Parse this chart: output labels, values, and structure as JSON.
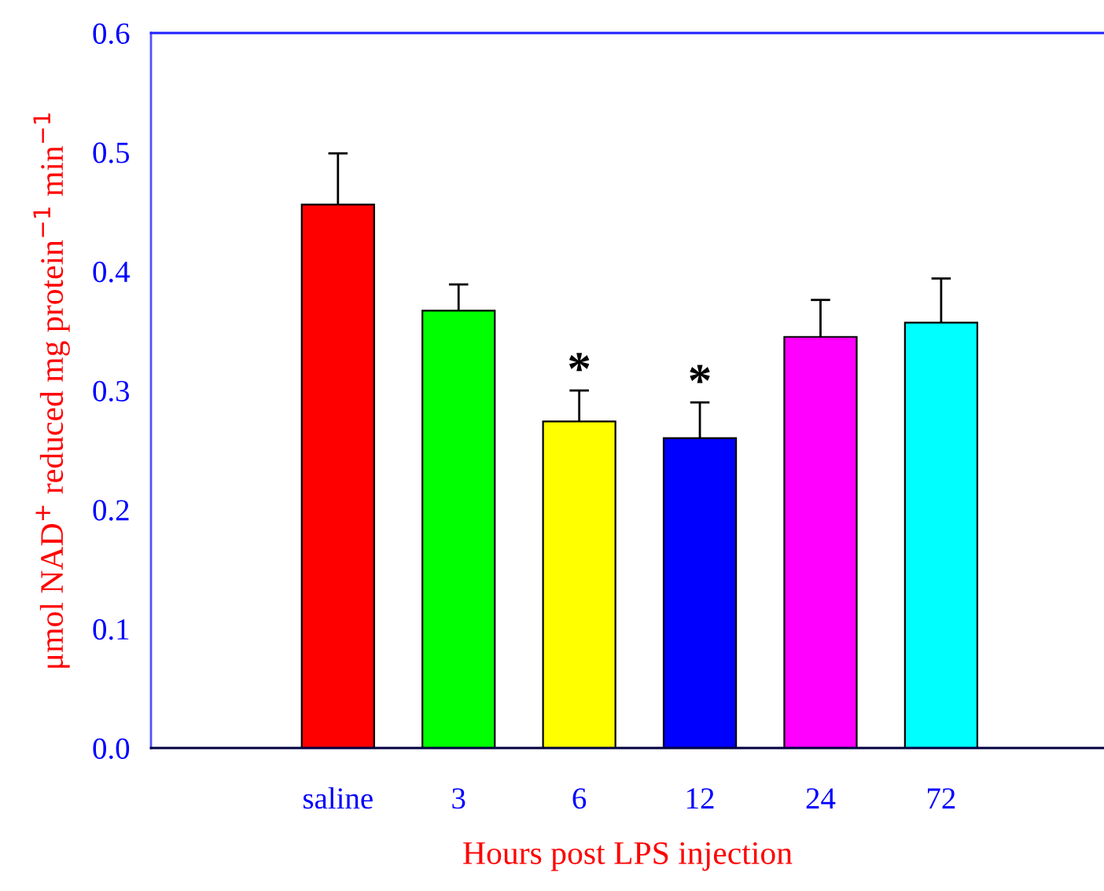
{
  "chart_data": {
    "type": "bar",
    "xlabel": "Hours post LPS injection",
    "ylabel": "μmol NAD$^{+}$ reduced mg protein$^{−1}$ min$^{−1}$",
    "categories": [
      "saline",
      "3",
      "6",
      "12",
      "24",
      "72"
    ],
    "values": [
      0.456,
      0.367,
      0.274,
      0.26,
      0.345,
      0.357
    ],
    "colors": [
      "#ff0000",
      "#00ff00",
      "#ffff00",
      "#0000ff",
      "#ff00ff",
      "#00ffff"
    ],
    "errors": [
      [
        0.456,
        0.499
      ],
      [
        0.367,
        0.389
      ],
      [
        0.274,
        0.3
      ],
      [
        0.26,
        0.29
      ],
      [
        0.345,
        0.376
      ],
      [
        0.357,
        0.394
      ]
    ],
    "ylim": [
      0,
      0.6
    ],
    "yticks": [
      {
        "value": 0,
        "label": "0.0"
      },
      0.1,
      0.2,
      0.3,
      0.4,
      0.5,
      0.6
    ],
    "annotations": [
      {
        "text": "*",
        "x": "6",
        "y": 0.3
      },
      {
        "text": "*",
        "x": "12",
        "y": 0.29
      }
    ],
    "grid": false,
    "legend": false
  }
}
